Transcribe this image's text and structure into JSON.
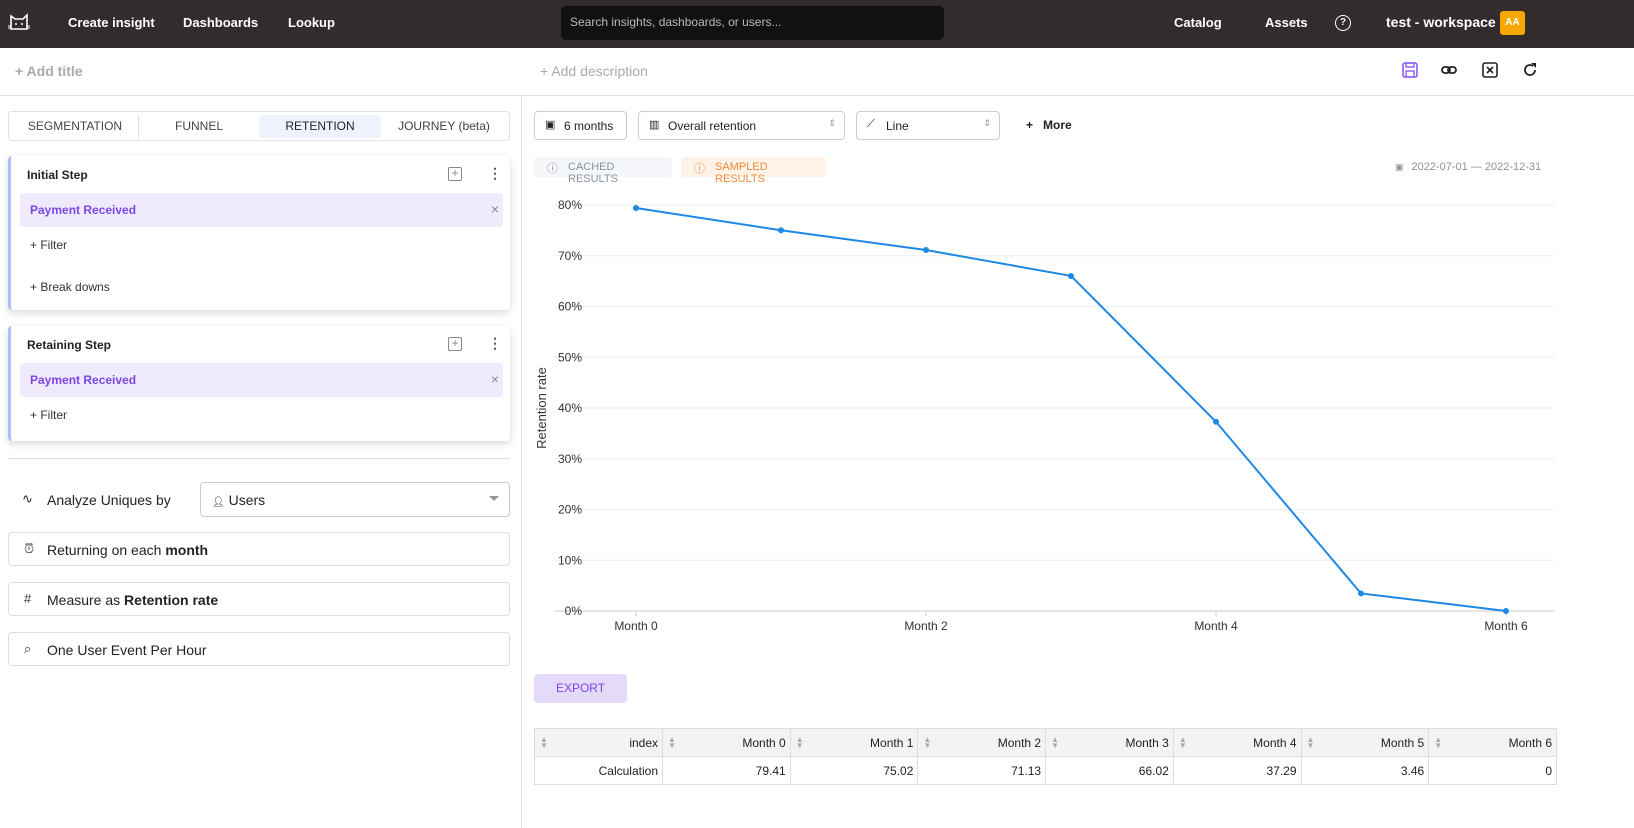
{
  "topbar": {
    "nav": [
      "Create insight",
      "Dashboards",
      "Lookup"
    ],
    "search_placeholder": "Search insights, dashboards, or users...",
    "catalog": "Catalog",
    "assets": "Assets",
    "workspace": "test - workspace",
    "avatar": "AA"
  },
  "subbar": {
    "add_title": "+ Add title",
    "add_description": "+ Add description"
  },
  "tabs": [
    "SEGMENTATION",
    "FUNNEL",
    "RETENTION",
    "JOURNEY (beta)"
  ],
  "active_tab": "RETENTION",
  "initial_step": {
    "title": "Initial Step",
    "event": "Payment Received",
    "filter": "+ Filter",
    "breakdowns": "+ Break downs"
  },
  "retaining_step": {
    "title": "Retaining Step",
    "event": "Payment Received",
    "filter": "+ Filter"
  },
  "analyze": {
    "label": "Analyze Uniques by",
    "value": "Users"
  },
  "returning": {
    "prefix": "Returning on each ",
    "bold": "month"
  },
  "measure": {
    "prefix": "Measure as ",
    "bold": "Retention rate"
  },
  "event_per": "One User Event Per Hour",
  "controls": {
    "range": "6 months",
    "view": "Overall retention",
    "chart_type": "Line",
    "more": "More"
  },
  "badges": {
    "cached": "CACHED RESULTS",
    "sampled": "SAMPLED RESULTS",
    "date_range": "2022-07-01 — 2022-12-31"
  },
  "export": "EXPORT",
  "chart_data": {
    "type": "line",
    "ylabel": "Retention rate",
    "x": [
      "Month 0",
      "Month 1",
      "Month 2",
      "Month 3",
      "Month 4",
      "Month 5",
      "Month 6"
    ],
    "xticks": [
      "Month 0",
      "Month 2",
      "Month 4",
      "Month 6"
    ],
    "yticks": [
      "0%",
      "10%",
      "20%",
      "30%",
      "40%",
      "50%",
      "60%",
      "70%",
      "80%"
    ],
    "ylim": [
      0,
      80
    ],
    "values": [
      79.41,
      75.02,
      71.13,
      66.02,
      37.29,
      3.46,
      0
    ],
    "color": "#1e88e5",
    "grid": true
  },
  "table": {
    "headers": [
      "index",
      "Month 0",
      "Month 1",
      "Month 2",
      "Month 3",
      "Month 4",
      "Month 5",
      "Month 6"
    ],
    "rows": [
      [
        "Calculation",
        "79.41",
        "75.02",
        "71.13",
        "66.02",
        "37.29",
        "3.46",
        "0"
      ]
    ]
  }
}
